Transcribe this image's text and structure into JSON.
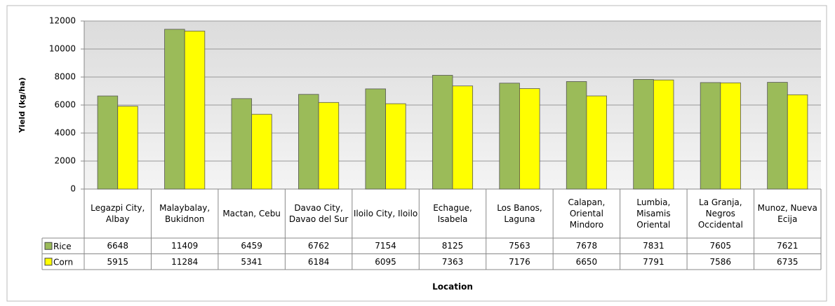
{
  "chart_data": {
    "type": "bar",
    "x_label": "Location",
    "y_label": "Yield (kg/ha)",
    "categories": [
      "Legazpi City, Albay",
      "Malaybalay, Bukidnon",
      "Mactan, Cebu",
      "Davao City, Davao del Sur",
      "Iloilo City, Iloilo",
      "Echague, Isabela",
      "Los Banos, Laguna",
      "Calapan, Oriental Mindoro",
      "Lumbia, Misamis Oriental",
      "La Granja, Negros Occidental",
      "Munoz, Nueva Ecija"
    ],
    "series": [
      {
        "name": "Rice",
        "color": "#9bbb59",
        "values": [
          6648,
          11409,
          6459,
          6762,
          7154,
          8125,
          7563,
          7678,
          7831,
          7605,
          7621
        ]
      },
      {
        "name": "Corn",
        "color": "#ffff00",
        "values": [
          5915,
          11284,
          5341,
          6184,
          6095,
          7363,
          7176,
          6650,
          7791,
          7586,
          6735
        ]
      }
    ],
    "ylim": [
      0,
      12000
    ],
    "yticks": [
      0,
      2000,
      4000,
      6000,
      8000,
      10000,
      12000
    ],
    "grid": true
  }
}
